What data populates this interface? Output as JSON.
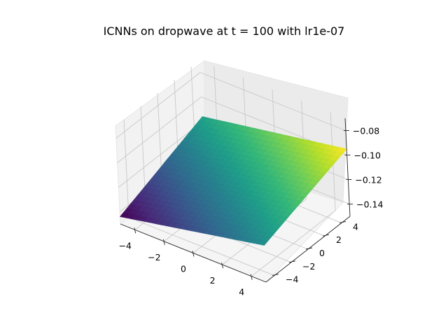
{
  "chart_data": {
    "type": "surface3d",
    "title": "ICNNs on dropwave at t = 100 with lr1e-07",
    "colormap": "viridis",
    "x_ticks": [
      "−4",
      "−2",
      "0",
      "2",
      "4"
    ],
    "y_ticks": [
      "−4",
      "−2",
      "0",
      "2",
      "4"
    ],
    "z_ticks": [
      "−0.14",
      "−0.12",
      "−0.10",
      "−0.08"
    ],
    "xlim": [
      -5,
      5
    ],
    "ylim": [
      -5,
      5
    ],
    "zlim": [
      -0.15,
      -0.07
    ],
    "grid": true,
    "surface_corners": [
      {
        "x": -5,
        "y": -5,
        "z": -0.144
      },
      {
        "x": 5,
        "y": -5,
        "z": -0.12
      },
      {
        "x": -5,
        "y": 5,
        "z": -0.116
      },
      {
        "x": 5,
        "y": 5,
        "z": -0.095
      }
    ]
  }
}
